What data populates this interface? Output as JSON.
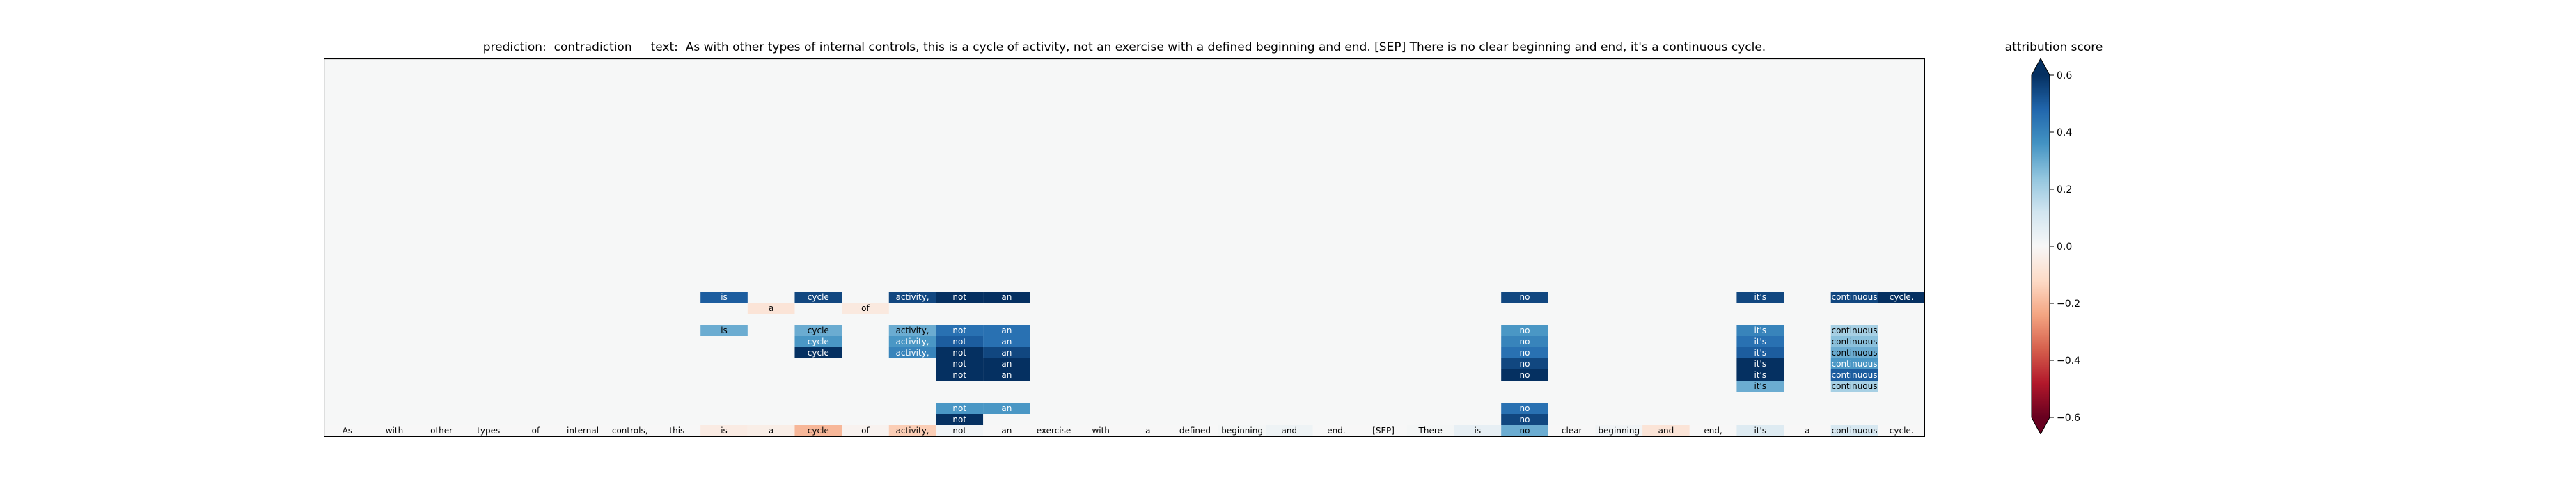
{
  "chart_data": {
    "type": "heatmap",
    "title": "prediction:  contradiction     text:  As with other types of internal controls, this is a cycle of activity, not an exercise with a defined beginning and end. [SEP] There is no clear beginning and end, it's a continuous cycle.",
    "tokens": [
      "As",
      "with",
      "other",
      "types",
      "of",
      "internal",
      "controls,",
      "this",
      "is",
      "a",
      "cycle",
      "of",
      "activity,",
      "not",
      "an",
      "exercise",
      "with",
      "a",
      "defined",
      "beginning",
      "and",
      "end.",
      "[SEP]",
      "There",
      "is",
      "no",
      "clear",
      "beginning",
      "and",
      "end,",
      "it's",
      "a",
      "continuous",
      "cycle."
    ],
    "base_scores": [
      0.0,
      0.0,
      0.0,
      0.0,
      0.0,
      0.0,
      0.0,
      0.0,
      -0.05,
      -0.04,
      -0.2,
      -0.02,
      -0.15,
      0.02,
      0.0,
      0.0,
      0.0,
      0.0,
      0.0,
      0.01,
      0.03,
      0.0,
      0.0,
      0.01,
      0.05,
      0.3,
      0.0,
      0.02,
      -0.08,
      0.0,
      0.08,
      0.0,
      0.1,
      0.0
    ],
    "attribution_rows": [
      {
        "level": 1,
        "cells": [
          {
            "token": 13,
            "score": 0.7
          },
          {
            "token": 25,
            "score": 0.55
          }
        ]
      },
      {
        "level": 2,
        "cells": [
          {
            "token": 13,
            "score": 0.35
          },
          {
            "token": 14,
            "score": 0.35
          },
          {
            "token": 25,
            "score": 0.45
          }
        ]
      },
      {
        "level": 4,
        "cells": [
          {
            "token": 30,
            "score": 0.3
          },
          {
            "token": 32,
            "score": 0.2
          }
        ]
      },
      {
        "level": 5,
        "cells": [
          {
            "token": 13,
            "score": 0.85
          },
          {
            "token": 14,
            "score": 0.8
          },
          {
            "token": 25,
            "score": 0.8
          },
          {
            "token": 30,
            "score": 0.85
          },
          {
            "token": 32,
            "score": 0.5
          }
        ]
      },
      {
        "level": 6,
        "cells": [
          {
            "token": 13,
            "score": 0.65
          },
          {
            "token": 14,
            "score": 0.65
          },
          {
            "token": 25,
            "score": 0.55
          },
          {
            "token": 30,
            "score": 0.6
          },
          {
            "token": 32,
            "score": 0.35
          }
        ]
      },
      {
        "level": 7,
        "cells": [
          {
            "token": 10,
            "score": 0.6
          },
          {
            "token": 12,
            "score": 0.4
          },
          {
            "token": 13,
            "score": 0.6
          },
          {
            "token": 14,
            "score": 0.55
          },
          {
            "token": 25,
            "score": 0.45
          },
          {
            "token": 30,
            "score": 0.5
          },
          {
            "token": 32,
            "score": 0.3
          }
        ]
      },
      {
        "level": 8,
        "cells": [
          {
            "token": 10,
            "score": 0.35
          },
          {
            "token": 12,
            "score": 0.35
          },
          {
            "token": 13,
            "score": 0.5
          },
          {
            "token": 14,
            "score": 0.45
          },
          {
            "token": 25,
            "score": 0.4
          },
          {
            "token": 30,
            "score": 0.45
          },
          {
            "token": 32,
            "score": 0.25
          }
        ]
      },
      {
        "level": 9,
        "cells": [
          {
            "token": 8,
            "score": 0.3
          },
          {
            "token": 10,
            "score": 0.3
          },
          {
            "token": 12,
            "score": 0.3
          },
          {
            "token": 13,
            "score": 0.45
          },
          {
            "token": 14,
            "score": 0.45
          },
          {
            "token": 25,
            "score": 0.35
          },
          {
            "token": 30,
            "score": 0.4
          },
          {
            "token": 32,
            "score": 0.2
          }
        ]
      },
      {
        "level": 11,
        "cells": [
          {
            "token": 9,
            "score": -0.08
          },
          {
            "token": 11,
            "score": -0.06
          }
        ]
      },
      {
        "level": 12,
        "cells": [
          {
            "token": 8,
            "score": 0.5
          },
          {
            "token": 10,
            "score": 0.55
          },
          {
            "token": 12,
            "score": 0.55
          },
          {
            "token": 13,
            "score": 0.6
          },
          {
            "token": 14,
            "score": 0.6
          },
          {
            "token": 25,
            "score": 0.55
          },
          {
            "token": 30,
            "score": 0.55
          },
          {
            "token": 32,
            "score": 0.55
          },
          {
            "token": 33,
            "score": 0.6
          }
        ]
      }
    ],
    "colorbar": {
      "title": "attribution score",
      "range": [
        -0.6,
        0.6
      ],
      "ticks": [
        -0.6,
        -0.4,
        -0.2,
        0.0,
        0.2,
        0.4,
        0.6
      ],
      "tick_labels": [
        "−0.6",
        "−0.4",
        "−0.2",
        "0.0",
        "0.2",
        "0.4",
        "0.6"
      ],
      "colormap": "RdBu",
      "extend": "both"
    }
  }
}
